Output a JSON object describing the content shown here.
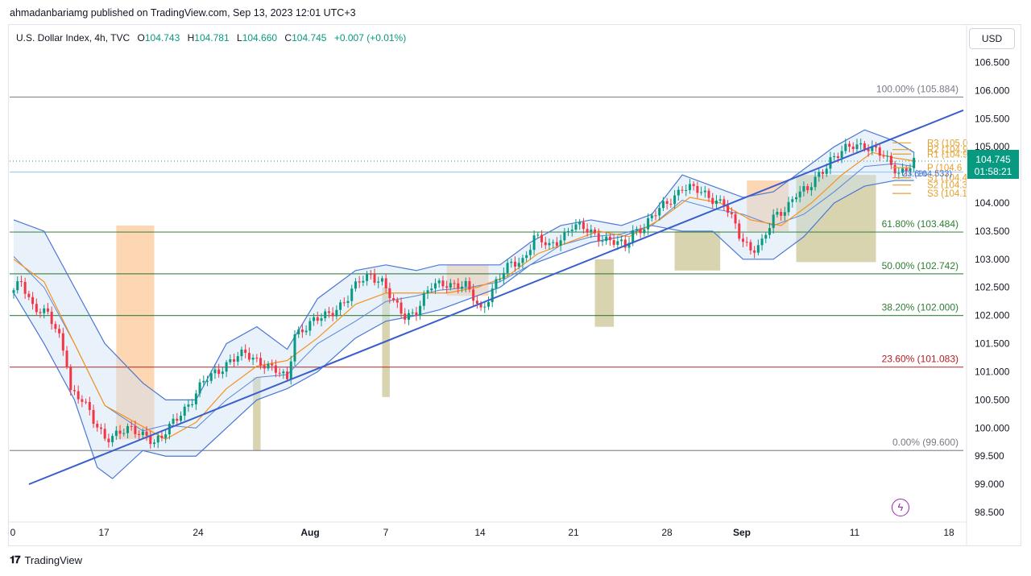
{
  "header": {
    "published": "ahmadanbariamg published on TradingView.com, Sep 13, 2023 12:01 UTC+3"
  },
  "legend": {
    "symbol": "U.S. Dollar Index, 4h, TVC",
    "O": "104.743",
    "H": "104.781",
    "L": "104.660",
    "C": "104.745",
    "change": "+0.007 (+0.01%)"
  },
  "currency_button": "USD",
  "footer": {
    "brand": "TradingView"
  },
  "colors": {
    "up": "#089981",
    "down": "#f23645",
    "trendline": "#3a5fcd",
    "bollinger": "#4a76d6",
    "ma": "#f7931a",
    "pivot": "#e5a02a",
    "fib_gray": "#787b86",
    "fib_green": "#2e7d32",
    "fib_red": "#b71c1c",
    "zone_orange": "#fcc89b",
    "zone_olive": "#c8c28f"
  },
  "chart_data": {
    "type": "candlestick",
    "y_axis": {
      "min": 98.3,
      "max": 106.75,
      "ticks": [
        "98.500",
        "99.000",
        "99.500",
        "100.000",
        "100.500",
        "101.000",
        "101.500",
        "102.000",
        "102.500",
        "103.000",
        "103.500",
        "104.000",
        "104.500",
        "105.000",
        "105.500",
        "106.000",
        "106.500"
      ]
    },
    "x_axis": {
      "ticks": [
        {
          "label": "0",
          "bold": false
        },
        {
          "label": "17",
          "bold": false
        },
        {
          "label": "24",
          "bold": false
        },
        {
          "label": "Aug",
          "bold": true
        },
        {
          "label": "7",
          "bold": false
        },
        {
          "label": "14",
          "bold": false
        },
        {
          "label": "21",
          "bold": false
        },
        {
          "label": "28",
          "bold": false
        },
        {
          "label": "Sep",
          "bold": true
        },
        {
          "label": "11",
          "bold": false
        },
        {
          "label": "18",
          "bold": false
        }
      ]
    },
    "price_path": [
      [
        0,
        102.4
      ],
      [
        2,
        102.6
      ],
      [
        5,
        102.2
      ],
      [
        9,
        102.0
      ],
      [
        12,
        101.6
      ],
      [
        14,
        101.2
      ],
      [
        15,
        100.7
      ],
      [
        18,
        100.5
      ],
      [
        21,
        100.1
      ],
      [
        24,
        99.85
      ],
      [
        27,
        99.9
      ],
      [
        31,
        99.95
      ],
      [
        35,
        99.9
      ],
      [
        37,
        99.75
      ],
      [
        39,
        99.8
      ],
      [
        41,
        100.0
      ],
      [
        44,
        100.3
      ],
      [
        47,
        100.5
      ],
      [
        50,
        100.8
      ],
      [
        53,
        101.0
      ],
      [
        57,
        101.2
      ],
      [
        61,
        101.3
      ],
      [
        65,
        101.2
      ],
      [
        69,
        101.0
      ],
      [
        72,
        100.85
      ],
      [
        74,
        101.7
      ],
      [
        77,
        101.8
      ],
      [
        81,
        101.95
      ],
      [
        84,
        102.1
      ],
      [
        88,
        102.3
      ],
      [
        91,
        102.6
      ],
      [
        94,
        102.75
      ],
      [
        97,
        102.6
      ],
      [
        100,
        102.2
      ],
      [
        103,
        102.0
      ],
      [
        106,
        102.1
      ],
      [
        110,
        102.5
      ],
      [
        114,
        102.6
      ],
      [
        119,
        102.5
      ],
      [
        123,
        102.1
      ],
      [
        127,
        102.6
      ],
      [
        131,
        102.9
      ],
      [
        134,
        103.0
      ],
      [
        137,
        103.4
      ],
      [
        141,
        103.2
      ],
      [
        144,
        103.4
      ],
      [
        147,
        103.6
      ],
      [
        151,
        103.5
      ],
      [
        155,
        103.4
      ],
      [
        158,
        103.3
      ],
      [
        161,
        103.2
      ],
      [
        163,
        103.5
      ],
      [
        166,
        103.6
      ],
      [
        169,
        103.8
      ],
      [
        172,
        104.0
      ],
      [
        176,
        104.3
      ],
      [
        180,
        104.2
      ],
      [
        184,
        104.1
      ],
      [
        187,
        104.0
      ],
      [
        189,
        103.7
      ],
      [
        191,
        103.4
      ],
      [
        194,
        103.2
      ],
      [
        197,
        103.3
      ],
      [
        200,
        103.7
      ],
      [
        203,
        103.9
      ],
      [
        206,
        104.2
      ],
      [
        209,
        104.2
      ],
      [
        212,
        104.5
      ],
      [
        215,
        104.8
      ],
      [
        218,
        104.9
      ],
      [
        221,
        105.0
      ],
      [
        224,
        105.05
      ],
      [
        227,
        104.95
      ],
      [
        229,
        104.8
      ],
      [
        231,
        104.65
      ],
      [
        233,
        104.55
      ],
      [
        235,
        104.65
      ],
      [
        237,
        104.75
      ]
    ],
    "bollinger_upper": [
      [
        0,
        103.7
      ],
      [
        8,
        103.5
      ],
      [
        16,
        102.5
      ],
      [
        24,
        101.5
      ],
      [
        34,
        100.8
      ],
      [
        40,
        100.5
      ],
      [
        48,
        100.5
      ],
      [
        56,
        101.5
      ],
      [
        64,
        101.8
      ],
      [
        72,
        101.4
      ],
      [
        80,
        102.3
      ],
      [
        90,
        102.8
      ],
      [
        98,
        102.9
      ],
      [
        106,
        102.8
      ],
      [
        112,
        102.9
      ],
      [
        120,
        102.9
      ],
      [
        128,
        102.9
      ],
      [
        136,
        103.3
      ],
      [
        144,
        103.6
      ],
      [
        152,
        103.7
      ],
      [
        160,
        103.6
      ],
      [
        168,
        103.8
      ],
      [
        176,
        104.5
      ],
      [
        184,
        104.3
      ],
      [
        192,
        104.1
      ],
      [
        200,
        104.2
      ],
      [
        208,
        104.6
      ],
      [
        216,
        105.0
      ],
      [
        224,
        105.3
      ],
      [
        232,
        105.1
      ],
      [
        237,
        104.9
      ]
    ],
    "bollinger_lower": [
      [
        0,
        102.4
      ],
      [
        8,
        101.5
      ],
      [
        16,
        100.5
      ],
      [
        22,
        99.3
      ],
      [
        26,
        99.1
      ],
      [
        34,
        99.6
      ],
      [
        40,
        99.5
      ],
      [
        48,
        99.5
      ],
      [
        56,
        100.0
      ],
      [
        64,
        100.5
      ],
      [
        72,
        100.7
      ],
      [
        80,
        101.0
      ],
      [
        90,
        101.6
      ],
      [
        98,
        101.9
      ],
      [
        106,
        102.0
      ],
      [
        112,
        102.1
      ],
      [
        120,
        102.3
      ],
      [
        128,
        102.5
      ],
      [
        136,
        102.9
      ],
      [
        144,
        103.1
      ],
      [
        152,
        103.3
      ],
      [
        160,
        103.4
      ],
      [
        168,
        103.6
      ],
      [
        176,
        103.5
      ],
      [
        184,
        103.5
      ],
      [
        192,
        103.0
      ],
      [
        200,
        103.0
      ],
      [
        208,
        103.4
      ],
      [
        216,
        104.0
      ],
      [
        224,
        104.3
      ],
      [
        232,
        104.4
      ],
      [
        237,
        104.4
      ]
    ],
    "moving_average": [
      [
        0,
        103.0
      ],
      [
        8,
        102.6
      ],
      [
        16,
        101.5
      ],
      [
        24,
        100.4
      ],
      [
        32,
        100.1
      ],
      [
        40,
        99.8
      ],
      [
        48,
        100.1
      ],
      [
        56,
        100.7
      ],
      [
        64,
        101.1
      ],
      [
        72,
        101.2
      ],
      [
        80,
        101.6
      ],
      [
        90,
        102.2
      ],
      [
        98,
        102.4
      ],
      [
        106,
        102.4
      ],
      [
        114,
        102.4
      ],
      [
        122,
        102.5
      ],
      [
        130,
        102.7
      ],
      [
        138,
        103.1
      ],
      [
        146,
        103.3
      ],
      [
        154,
        103.5
      ],
      [
        162,
        103.4
      ],
      [
        170,
        103.7
      ],
      [
        178,
        104.1
      ],
      [
        186,
        104.0
      ],
      [
        194,
        103.7
      ],
      [
        202,
        103.6
      ],
      [
        210,
        104.0
      ],
      [
        218,
        104.5
      ],
      [
        226,
        104.9
      ],
      [
        232,
        104.8
      ],
      [
        237,
        104.75
      ]
    ],
    "trendline": [
      [
        4,
        99.0
      ],
      [
        250,
        105.65
      ]
    ],
    "fib_levels": [
      {
        "label": "100.00% (105.884)",
        "price": 105.884,
        "color": "gray"
      },
      {
        "label": "61.80% (103.484)",
        "price": 103.484,
        "color": "green"
      },
      {
        "label": "50.00% (102.742)",
        "price": 102.742,
        "color": "green"
      },
      {
        "label": "38.20% (102.000)",
        "price": 102.0,
        "color": "green"
      },
      {
        "label": "23.60% (101.083)",
        "price": 101.083,
        "color": "red"
      },
      {
        "label": "0.00% (99.600)",
        "price": 99.6,
        "color": "gray"
      }
    ],
    "pivots": [
      {
        "label": "R3 (105.0",
        "price": 105.07
      },
      {
        "label": "R2 (104.9",
        "price": 104.95
      },
      {
        "label": "R1 (104.9",
        "price": 104.87
      },
      {
        "label": "P (104.6",
        "price": 104.63
      },
      {
        "label": "S1 (104.4",
        "price": 104.45
      },
      {
        "label": "S2 (104.3",
        "price": 104.32
      },
      {
        "label": "S3 (104.1",
        "price": 104.17
      }
    ],
    "fib_partial_label": "23.6%",
    "fib_partial_value": "(104.533)",
    "horizontal_line": 104.55,
    "current_price": {
      "price": 104.745,
      "label": "104.745",
      "countdown": "01:58:21"
    },
    "zones": [
      {
        "type": "orange",
        "x0": 27,
        "x1": 37,
        "y0": 99.8,
        "y1": 103.6
      },
      {
        "type": "olive",
        "x0": 63,
        "x1": 65,
        "y0": 99.6,
        "y1": 100.9
      },
      {
        "type": "olive",
        "x0": 97,
        "x1": 99,
        "y0": 100.55,
        "y1": 102.5
      },
      {
        "type": "orange",
        "x0": 114,
        "x1": 125,
        "y0": 102.35,
        "y1": 102.9
      },
      {
        "type": "olive",
        "x0": 153,
        "x1": 158,
        "y0": 101.8,
        "y1": 103.0
      },
      {
        "type": "olive",
        "x0": 174,
        "x1": 186,
        "y0": 102.8,
        "y1": 103.5
      },
      {
        "type": "orange",
        "x0": 193,
        "x1": 204,
        "y0": 103.5,
        "y1": 104.4
      },
      {
        "type": "olive",
        "x0": 206,
        "x1": 227,
        "y0": 102.95,
        "y1": 104.5
      }
    ]
  }
}
